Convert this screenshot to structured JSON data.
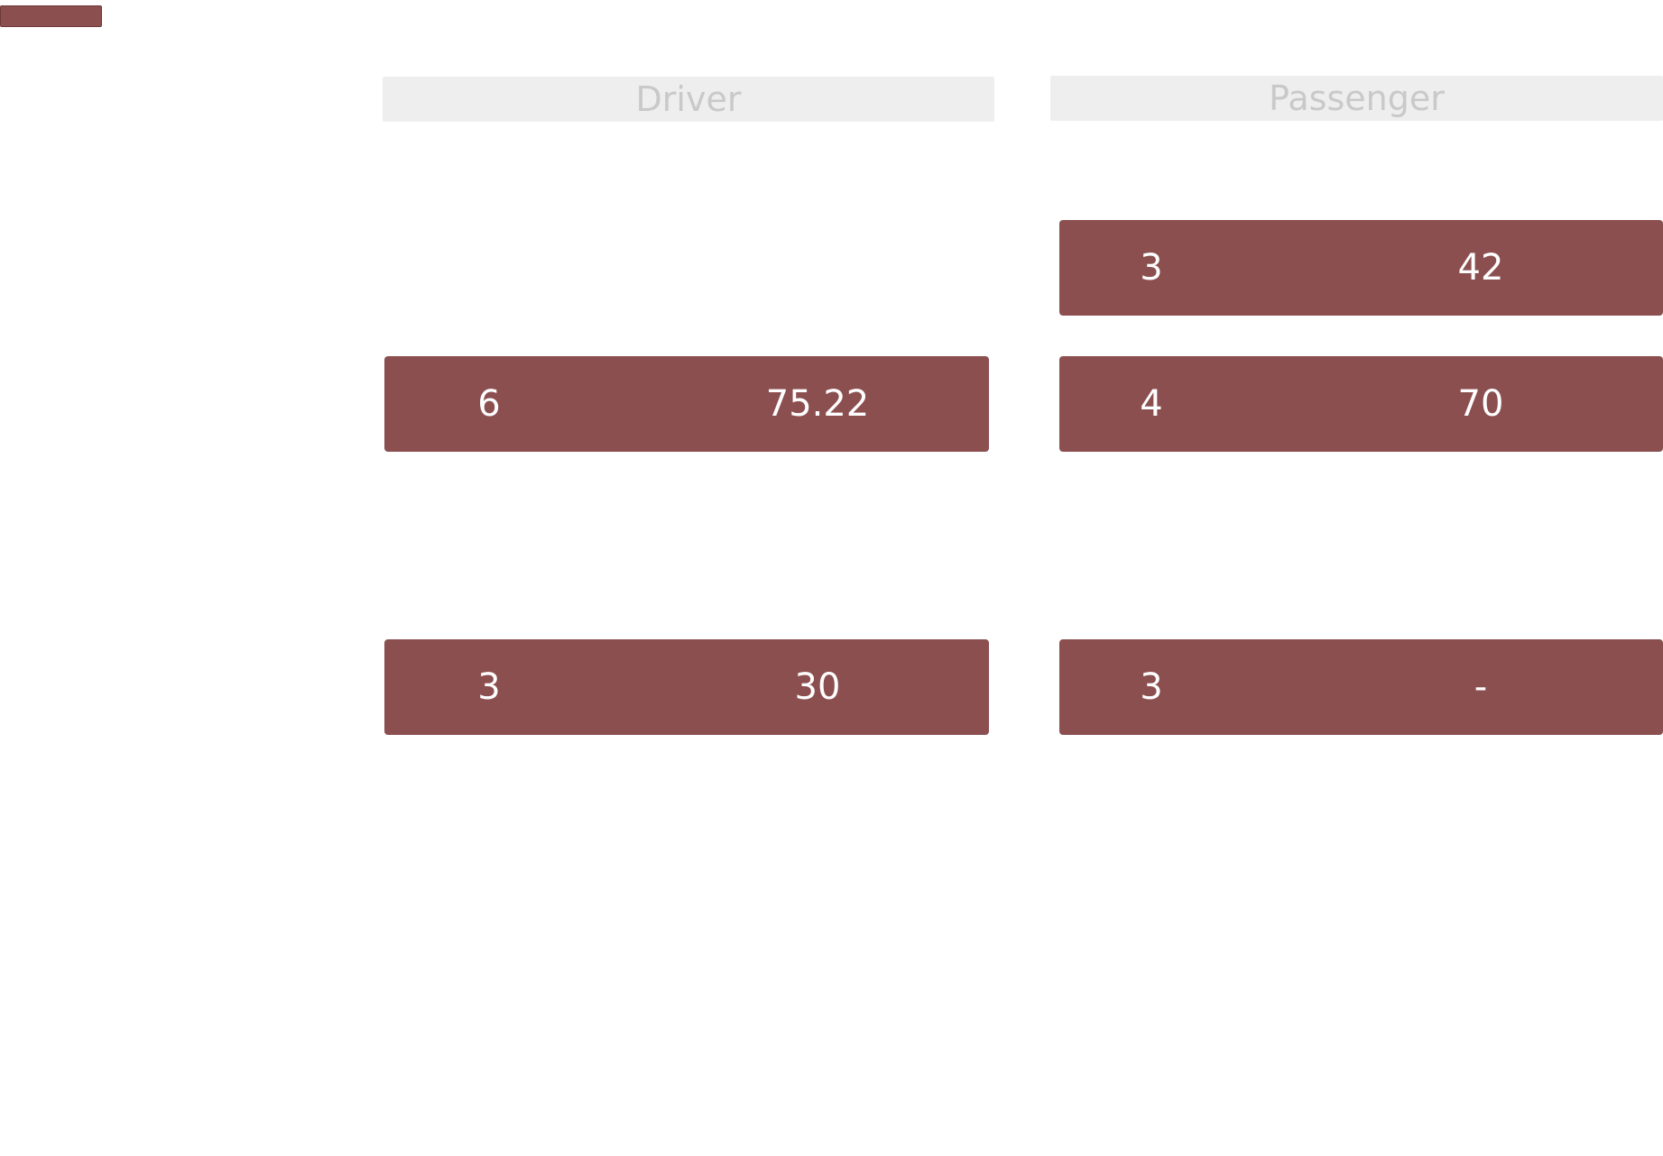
{
  "legend": {
    "swatch_color": "#8c4f50"
  },
  "columns": {
    "driver": {
      "label": "Driver"
    },
    "passenger": {
      "label": "Passenger"
    }
  },
  "rows": {
    "row_1": {
      "passenger": {
        "count": "3",
        "amount": "42"
      }
    },
    "row_2": {
      "driver": {
        "count": "6",
        "amount": "75.22"
      },
      "passenger": {
        "count": "4",
        "amount": "70"
      }
    },
    "row_3": {
      "driver": {
        "count": "3",
        "amount": "30"
      },
      "passenger": {
        "count": "3",
        "amount": "-"
      }
    }
  },
  "colors": {
    "cell_fill": "#8c4f50",
    "cell_text": "#ffffff",
    "header_fill": "#eeeeee",
    "header_text": "#c9c9c9"
  }
}
